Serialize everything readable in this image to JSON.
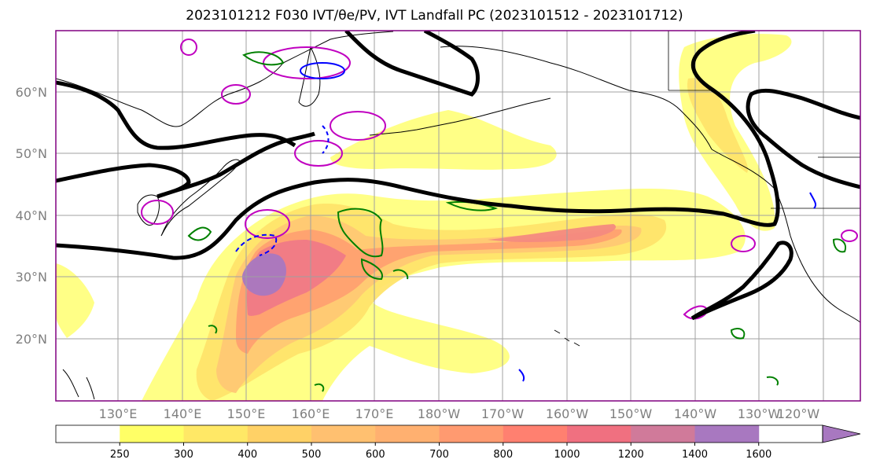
{
  "title": "2023101212 F030 IVT/θe/PV, IVT Landfall PC (2023101512 - 2023101712)",
  "map": {
    "latitude_labels": [
      "60°N",
      "50°N",
      "40°N",
      "30°N",
      "20°N"
    ],
    "longitude_labels": [
      "130°E",
      "140°E",
      "150°E",
      "160°E",
      "170°E",
      "180°W",
      "170°W",
      "160°W",
      "150°W",
      "140°W",
      "130°W",
      "120°W"
    ],
    "contour_colors": {
      "thick_contour": "#000000",
      "green_contour": "#008000",
      "blue_contour": "#0000ff",
      "magenta_contour": "#c000c0"
    },
    "border_color": "#800080",
    "grid_color": "#a0a0a0"
  },
  "colorbar": {
    "levels": [
      "250",
      "300",
      "400",
      "500",
      "600",
      "700",
      "800",
      "1000",
      "1200",
      "1400",
      "1600"
    ],
    "colors": [
      "#ffffff",
      "#ffff66",
      "#ffe866",
      "#ffd166",
      "#ffc070",
      "#ffb070",
      "#ff9a70",
      "#ff8070",
      "#f07080",
      "#d07a9a",
      "#a878c0"
    ]
  }
}
